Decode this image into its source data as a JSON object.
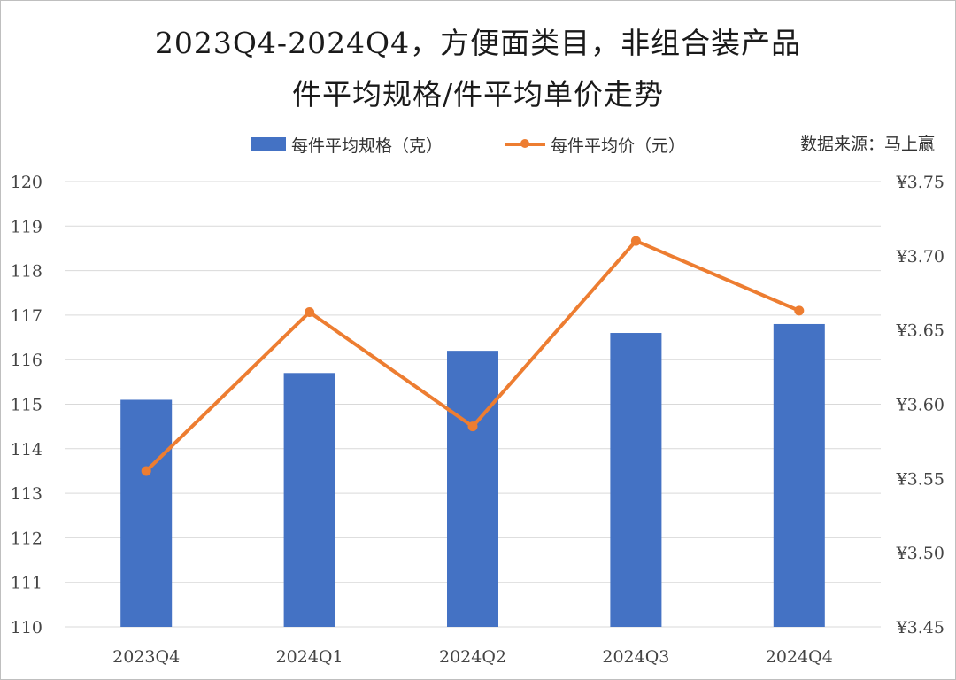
{
  "title_line1": "2023Q4-2024Q4，方便面类目，非组合装产品",
  "title_line2": "件平均规格/件平均单价走势",
  "source": "数据来源：马上赢",
  "colors": {
    "bar": "#4472C4",
    "line": "#ED7D31",
    "grid": "#d9d9d9"
  },
  "chart_data": {
    "type": "bar",
    "categories": [
      "2023Q4",
      "2024Q1",
      "2024Q2",
      "2024Q3",
      "2024Q4"
    ],
    "series": [
      {
        "name": "每件平均规格（克）",
        "type": "bar",
        "axis": "left",
        "values": [
          115.1,
          115.7,
          116.2,
          116.6,
          116.8
        ]
      },
      {
        "name": "每件平均价（元）",
        "type": "line",
        "axis": "right",
        "values": [
          3.555,
          3.662,
          3.585,
          3.71,
          3.663
        ]
      }
    ],
    "y_left": {
      "min": 110,
      "max": 120,
      "step": 1,
      "ticks": [
        "110",
        "111",
        "112",
        "113",
        "114",
        "115",
        "116",
        "117",
        "118",
        "119",
        "120"
      ]
    },
    "y_right": {
      "min": 3.45,
      "max": 3.75,
      "step": 0.05,
      "ticks": [
        "¥3.45",
        "¥3.50",
        "¥3.55",
        "¥3.60",
        "¥3.65",
        "¥3.70",
        "¥3.75"
      ]
    },
    "grid": true,
    "legend_position": "top"
  }
}
